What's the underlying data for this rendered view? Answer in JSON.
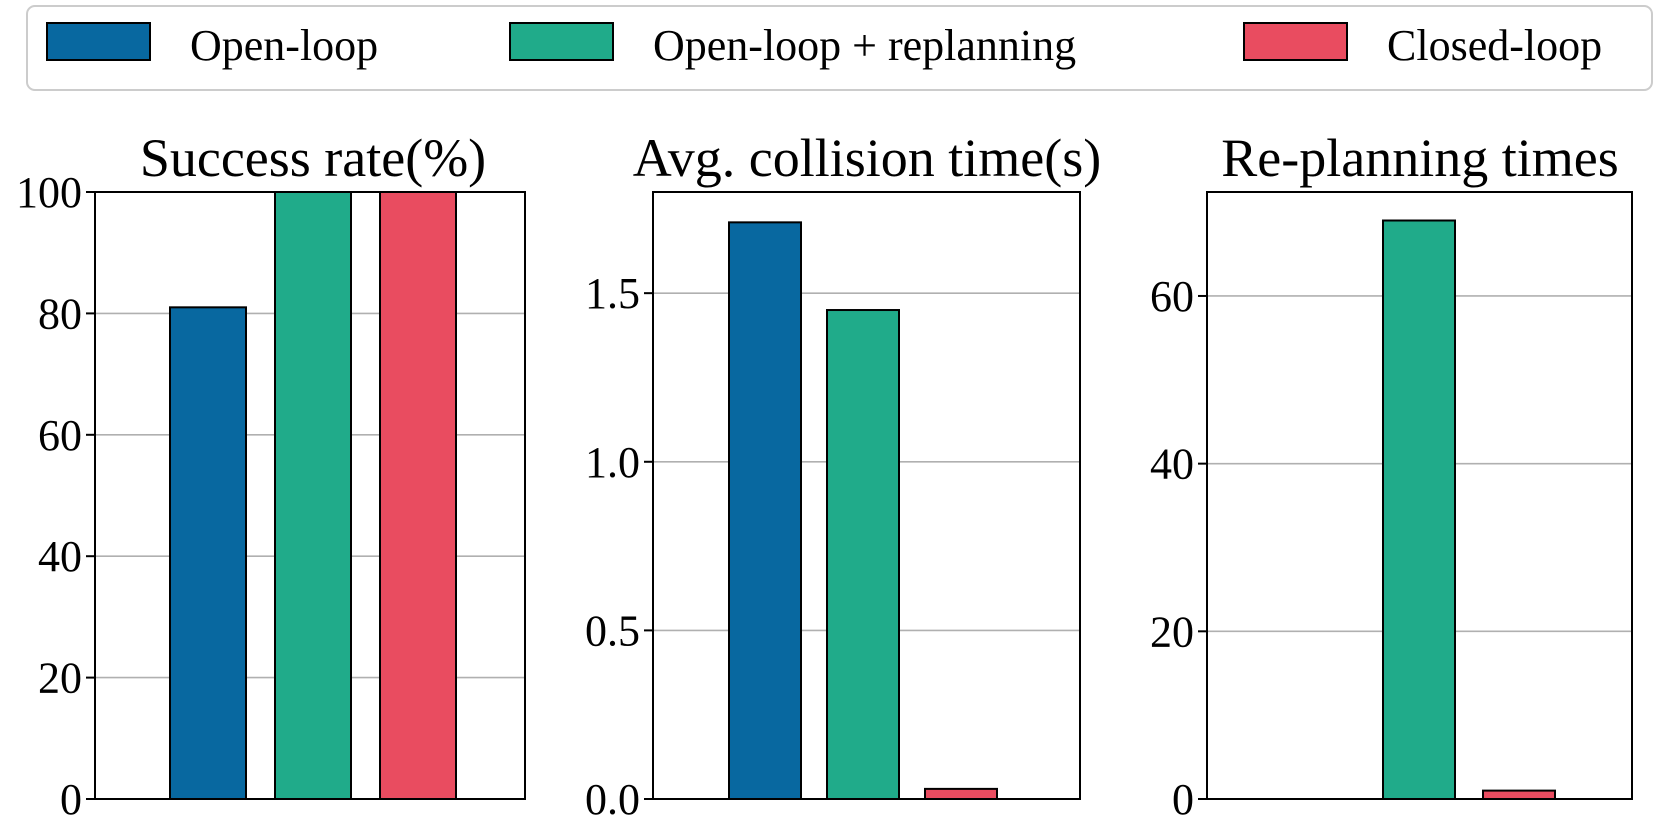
{
  "legend": [
    {
      "label": "Open-loop",
      "color": "#0868a0"
    },
    {
      "label": "Open-loop + replanning",
      "color": "#20ab8a"
    },
    {
      "label": "Closed-loop",
      "color": "#e94c60"
    }
  ],
  "chart_data": [
    {
      "type": "bar",
      "title": "Success rate(%)",
      "categories": [
        "Open-loop",
        "Open-loop + replanning",
        "Closed-loop"
      ],
      "values": [
        81,
        100,
        100
      ],
      "ylim": [
        0,
        100
      ],
      "yticks": [
        0,
        20,
        40,
        60,
        80,
        100
      ],
      "ytick_labels": [
        "0",
        "20",
        "40",
        "60",
        "80",
        "100"
      ],
      "grid": true
    },
    {
      "type": "bar",
      "title": "Avg. collision time(s)",
      "categories": [
        "Open-loop",
        "Open-loop + replanning",
        "Closed-loop"
      ],
      "values": [
        1.71,
        1.45,
        0.03
      ],
      "ylim": [
        0,
        1.8
      ],
      "yticks": [
        0,
        0.5,
        1.0,
        1.5
      ],
      "ytick_labels": [
        "0.0",
        "0.5",
        "1.0",
        "1.5"
      ],
      "grid": true
    },
    {
      "type": "bar",
      "title": "Re-planning times",
      "categories": [
        "Open-loop",
        "Open-loop + replanning",
        "Closed-loop"
      ],
      "values": [
        0,
        69,
        1
      ],
      "ylim": [
        0,
        72.4
      ],
      "yticks": [
        0,
        20,
        40,
        60
      ],
      "ytick_labels": [
        "0",
        "20",
        "40",
        "60"
      ],
      "grid": true
    }
  ]
}
